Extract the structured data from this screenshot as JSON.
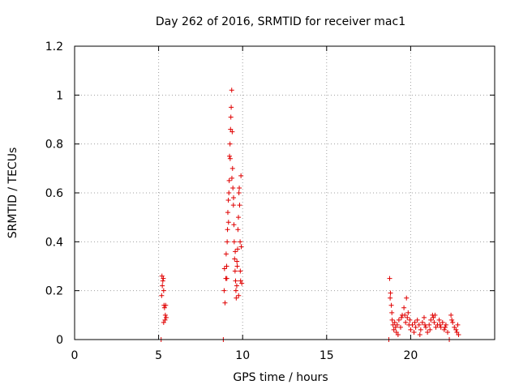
{
  "chart_data": {
    "type": "scatter",
    "title": "Day 262 of 2016, SRMTID for receiver mac1",
    "xlabel": "GPS time / hours",
    "ylabel": "SRMTID / TECUs",
    "xlim": [
      0,
      25
    ],
    "ylim": [
      0,
      1.2
    ],
    "xticks": [
      0,
      5,
      10,
      15,
      20
    ],
    "xtick_labels": [
      "0",
      "5",
      "10",
      "15",
      "20"
    ],
    "yticks": [
      0,
      0.2,
      0.4,
      0.6,
      0.8,
      1.0,
      1.2
    ],
    "ytick_labels": [
      "0",
      "0.2",
      "0.4",
      "0.6",
      "0.8",
      "1",
      "1.2"
    ],
    "grid": true,
    "marker": "plus",
    "color": "#e00000",
    "series": [
      {
        "name": "SRMTID",
        "points": [
          [
            5.15,
            0.0
          ],
          [
            8.85,
            0.0
          ],
          [
            18.7,
            0.0
          ],
          [
            22.3,
            0.0
          ],
          [
            5.2,
            0.26
          ],
          [
            5.25,
            0.24
          ],
          [
            5.22,
            0.22
          ],
          [
            5.28,
            0.25
          ],
          [
            5.3,
            0.2
          ],
          [
            5.18,
            0.18
          ],
          [
            5.32,
            0.14
          ],
          [
            5.35,
            0.13
          ],
          [
            5.4,
            0.1
          ],
          [
            5.38,
            0.08
          ],
          [
            5.42,
            0.14
          ],
          [
            5.45,
            0.09
          ],
          [
            5.3,
            0.07
          ],
          [
            8.9,
            0.2
          ],
          [
            8.95,
            0.15
          ],
          [
            9.0,
            0.25
          ],
          [
            9.02,
            0.35
          ],
          [
            9.05,
            0.3
          ],
          [
            9.08,
            0.4
          ],
          [
            9.1,
            0.45
          ],
          [
            9.12,
            0.52
          ],
          [
            9.15,
            0.57
          ],
          [
            9.18,
            0.6
          ],
          [
            9.2,
            0.65
          ],
          [
            9.22,
            0.75
          ],
          [
            9.25,
            0.8
          ],
          [
            9.28,
            0.86
          ],
          [
            9.3,
            0.91
          ],
          [
            9.32,
            0.95
          ],
          [
            9.35,
            1.02
          ],
          [
            9.38,
            0.85
          ],
          [
            9.4,
            0.7
          ],
          [
            9.42,
            0.62
          ],
          [
            9.45,
            0.55
          ],
          [
            9.48,
            0.47
          ],
          [
            9.5,
            0.4
          ],
          [
            9.52,
            0.33
          ],
          [
            9.55,
            0.28
          ],
          [
            9.58,
            0.24
          ],
          [
            9.6,
            0.2
          ],
          [
            9.62,
            0.17
          ],
          [
            9.65,
            0.22
          ],
          [
            9.68,
            0.3
          ],
          [
            9.7,
            0.37
          ],
          [
            9.72,
            0.45
          ],
          [
            9.75,
            0.5
          ],
          [
            9.78,
            0.6
          ],
          [
            9.8,
            0.62
          ],
          [
            9.82,
            0.55
          ],
          [
            9.85,
            0.4
          ],
          [
            9.88,
            0.24
          ],
          [
            9.9,
            0.67
          ],
          [
            9.92,
            0.38
          ],
          [
            9.95,
            0.23
          ],
          [
            8.92,
            0.29
          ],
          [
            9.06,
            0.25
          ],
          [
            9.16,
            0.48
          ],
          [
            9.26,
            0.74
          ],
          [
            9.36,
            0.66
          ],
          [
            9.46,
            0.58
          ],
          [
            9.56,
            0.36
          ],
          [
            9.66,
            0.32
          ],
          [
            9.76,
            0.18
          ],
          [
            9.86,
            0.28
          ],
          [
            18.75,
            0.25
          ],
          [
            18.8,
            0.19
          ],
          [
            18.85,
            0.14
          ],
          [
            18.9,
            0.08
          ],
          [
            18.95,
            0.06
          ],
          [
            19.0,
            0.04
          ],
          [
            19.05,
            0.07
          ],
          [
            19.1,
            0.05
          ],
          [
            19.15,
            0.03
          ],
          [
            19.2,
            0.06
          ],
          [
            19.3,
            0.08
          ],
          [
            19.4,
            0.05
          ],
          [
            19.5,
            0.1
          ],
          [
            19.6,
            0.13
          ],
          [
            19.7,
            0.07
          ],
          [
            19.75,
            0.17
          ],
          [
            19.8,
            0.09
          ],
          [
            19.85,
            0.11
          ],
          [
            19.9,
            0.06
          ],
          [
            20.0,
            0.04
          ],
          [
            20.1,
            0.06
          ],
          [
            20.2,
            0.03
          ],
          [
            20.3,
            0.05
          ],
          [
            20.4,
            0.08
          ],
          [
            20.5,
            0.06
          ],
          [
            20.6,
            0.04
          ],
          [
            20.7,
            0.07
          ],
          [
            20.8,
            0.09
          ],
          [
            20.9,
            0.05
          ],
          [
            21.0,
            0.03
          ],
          [
            21.1,
            0.06
          ],
          [
            21.2,
            0.08
          ],
          [
            21.3,
            0.1
          ],
          [
            21.4,
            0.07
          ],
          [
            21.5,
            0.05
          ],
          [
            21.6,
            0.06
          ],
          [
            21.7,
            0.08
          ],
          [
            21.8,
            0.05
          ],
          [
            21.9,
            0.07
          ],
          [
            22.0,
            0.04
          ],
          [
            22.1,
            0.06
          ],
          [
            22.2,
            0.03
          ],
          [
            22.4,
            0.1
          ],
          [
            22.5,
            0.07
          ],
          [
            22.6,
            0.05
          ],
          [
            22.7,
            0.04
          ],
          [
            22.8,
            0.06
          ],
          [
            22.85,
            0.02
          ],
          [
            18.78,
            0.17
          ],
          [
            18.88,
            0.11
          ],
          [
            19.25,
            0.02
          ],
          [
            19.45,
            0.09
          ],
          [
            19.65,
            0.1
          ],
          [
            19.95,
            0.08
          ],
          [
            20.25,
            0.07
          ],
          [
            20.55,
            0.02
          ],
          [
            20.85,
            0.06
          ],
          [
            21.15,
            0.04
          ],
          [
            21.35,
            0.09
          ],
          [
            21.45,
            0.1
          ],
          [
            21.75,
            0.06
          ],
          [
            22.05,
            0.05
          ],
          [
            22.45,
            0.08
          ],
          [
            22.75,
            0.03
          ]
        ]
      }
    ]
  }
}
